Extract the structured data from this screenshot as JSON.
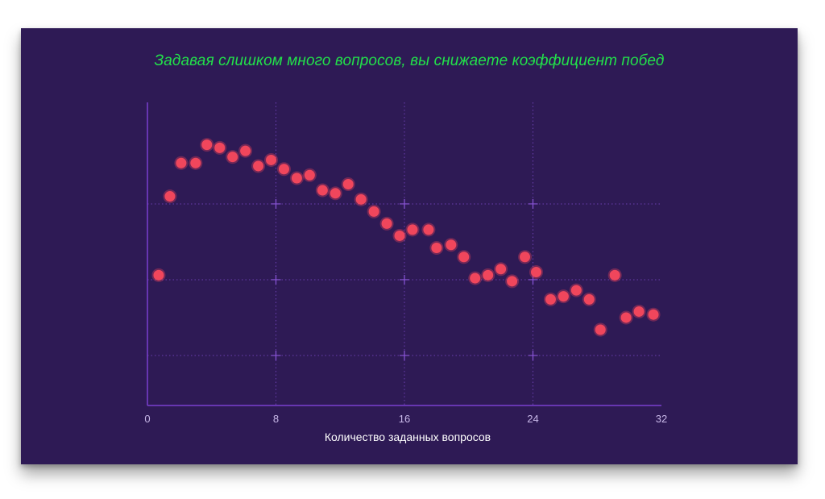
{
  "chart_data": {
    "type": "scatter",
    "title": "Задавая слишком много вопросов, вы снижаете коэффициент побед",
    "xlabel": "Количество заданных вопросов",
    "ylabel": "",
    "xlim": [
      0,
      32
    ],
    "xticks": [
      "0",
      "8",
      "16",
      "24",
      "32"
    ],
    "grid": true,
    "colors": {
      "background": "#2e1a55",
      "axis": "#7a3fd0",
      "grid": "#6a3fb0",
      "point": "#f0465c",
      "title": "#22e14a"
    },
    "points": [
      {
        "x": 0.7,
        "y": 0.43
      },
      {
        "x": 1.4,
        "y": 0.69
      },
      {
        "x": 2.1,
        "y": 0.8
      },
      {
        "x": 3.0,
        "y": 0.8
      },
      {
        "x": 3.7,
        "y": 0.86
      },
      {
        "x": 4.5,
        "y": 0.85
      },
      {
        "x": 5.3,
        "y": 0.82
      },
      {
        "x": 6.1,
        "y": 0.84
      },
      {
        "x": 6.9,
        "y": 0.79
      },
      {
        "x": 7.7,
        "y": 0.81
      },
      {
        "x": 8.5,
        "y": 0.78
      },
      {
        "x": 9.3,
        "y": 0.75
      },
      {
        "x": 10.1,
        "y": 0.76
      },
      {
        "x": 10.9,
        "y": 0.71
      },
      {
        "x": 11.7,
        "y": 0.7
      },
      {
        "x": 12.5,
        "y": 0.73
      },
      {
        "x": 13.3,
        "y": 0.68
      },
      {
        "x": 14.1,
        "y": 0.64
      },
      {
        "x": 14.9,
        "y": 0.6
      },
      {
        "x": 15.7,
        "y": 0.56
      },
      {
        "x": 16.5,
        "y": 0.58
      },
      {
        "x": 17.5,
        "y": 0.58
      },
      {
        "x": 18.0,
        "y": 0.52
      },
      {
        "x": 18.9,
        "y": 0.53
      },
      {
        "x": 19.7,
        "y": 0.49
      },
      {
        "x": 20.4,
        "y": 0.42
      },
      {
        "x": 21.2,
        "y": 0.43
      },
      {
        "x": 22.0,
        "y": 0.45
      },
      {
        "x": 22.7,
        "y": 0.41
      },
      {
        "x": 23.5,
        "y": 0.49
      },
      {
        "x": 24.2,
        "y": 0.44
      },
      {
        "x": 25.1,
        "y": 0.35
      },
      {
        "x": 25.9,
        "y": 0.36
      },
      {
        "x": 26.7,
        "y": 0.38
      },
      {
        "x": 27.5,
        "y": 0.35
      },
      {
        "x": 28.2,
        "y": 0.25
      },
      {
        "x": 29.1,
        "y": 0.43
      },
      {
        "x": 29.8,
        "y": 0.29
      },
      {
        "x": 30.6,
        "y": 0.31
      },
      {
        "x": 31.5,
        "y": 0.3
      }
    ]
  }
}
